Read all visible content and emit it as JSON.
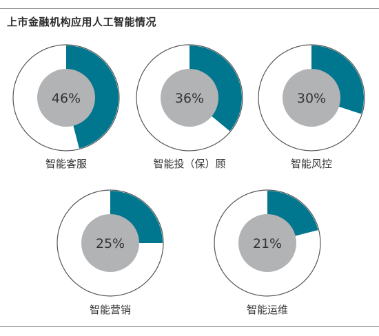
{
  "page": {
    "title": "上市金融机构应用人工智能情况"
  },
  "chart_data": {
    "type": "pie",
    "title": "上市金融机构应用人工智能情况",
    "unit": "%",
    "colors": {
      "fill": "#00778f",
      "ring": "#555555",
      "center": "#b2b3b5",
      "text": "#333333"
    },
    "items": [
      {
        "label": "智能客服",
        "value": 46,
        "display": "46%"
      },
      {
        "label": "智能投（保）顾",
        "value": 36,
        "display": "36%"
      },
      {
        "label": "智能风控",
        "value": 30,
        "display": "30%"
      },
      {
        "label": "智能营销",
        "value": 25,
        "display": "25%"
      },
      {
        "label": "智能运维",
        "value": 21,
        "display": "21%"
      }
    ]
  }
}
